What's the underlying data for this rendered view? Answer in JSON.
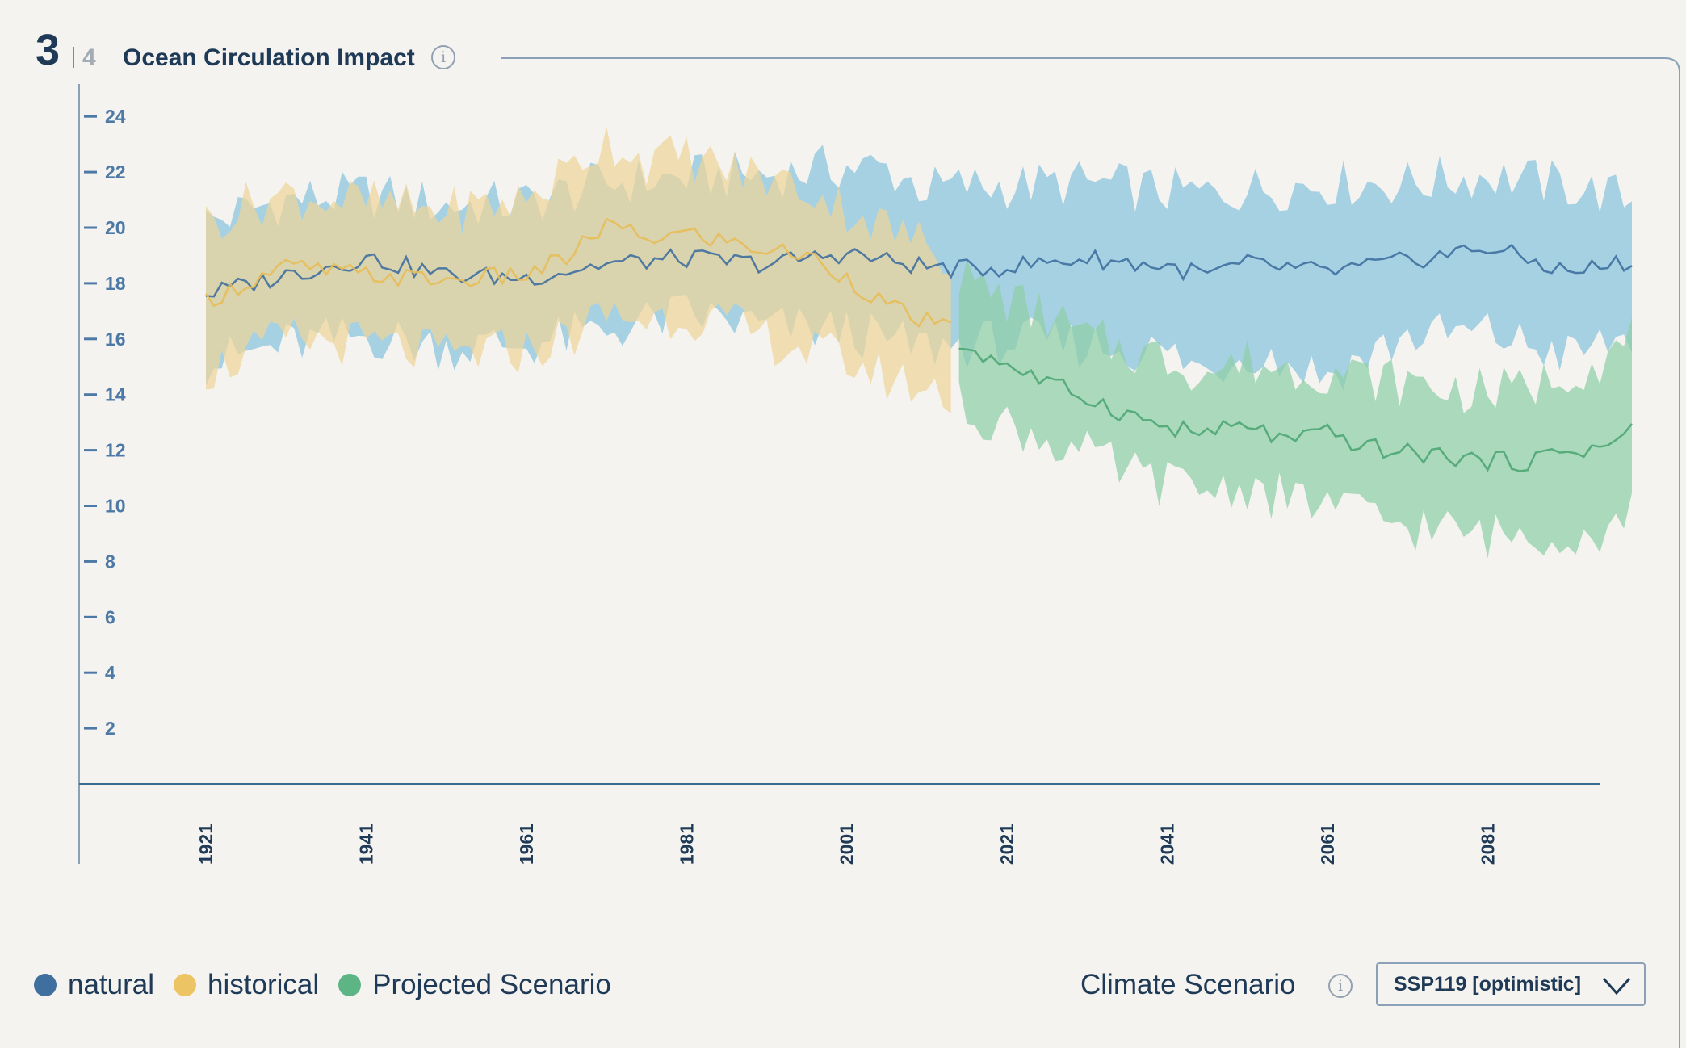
{
  "header": {
    "step_current": "3",
    "step_total": "4",
    "title": "Ocean Circulation Impact",
    "info_icon": "info-icon"
  },
  "legend": [
    {
      "label": "natural",
      "color": "#3f6f9f"
    },
    {
      "label": "historical",
      "color": "#ecc463"
    },
    {
      "label": "Projected Scenario",
      "color": "#5db585"
    }
  ],
  "controls": {
    "scenario_label": "Climate Scenario",
    "scenario_info_icon": "info-icon",
    "scenario_value": "SSP119 [optimistic]",
    "dropdown_icon": "chevron-down-icon"
  },
  "chart_data": {
    "type": "area",
    "title": "",
    "xlabel": "",
    "ylabel": "",
    "xlim": [
      1905,
      2113
    ],
    "ylim": [
      0,
      25
    ],
    "yticks": [
      2,
      4,
      6,
      8,
      10,
      12,
      14,
      16,
      18,
      20,
      22,
      24
    ],
    "xticks": [
      1921,
      1941,
      1961,
      1981,
      2001,
      2021,
      2041,
      2061,
      2081
    ],
    "grid": false,
    "legend_position": "bottom-left",
    "series": [
      {
        "name": "natural",
        "color": "#3f6f9f",
        "band_color": "#8fc6df",
        "x": [
          1921,
          1931,
          1941,
          1951,
          1961,
          1971,
          1981,
          1991,
          2001,
          2006,
          2011,
          2016,
          2021,
          2031,
          2041,
          2046,
          2051,
          2061,
          2071,
          2081,
          2091,
          2099
        ],
        "mean": [
          17.6,
          18.3,
          18.9,
          18.3,
          18.2,
          18.7,
          18.9,
          18.7,
          19.1,
          18.8,
          18.6,
          18.5,
          18.6,
          18.9,
          18.6,
          18.3,
          18.7,
          18.4,
          18.8,
          19.3,
          18.4,
          18.8
        ],
        "upper": [
          20.2,
          21.0,
          21.2,
          20.8,
          20.9,
          21.6,
          21.8,
          21.9,
          22.2,
          22.1,
          21.4,
          21.5,
          21.5,
          21.6,
          21.3,
          21.2,
          21.4,
          21.6,
          21.6,
          21.9,
          21.5,
          21.0
        ],
        "lower": [
          15.1,
          15.8,
          16.1,
          15.7,
          15.8,
          16.3,
          16.9,
          16.4,
          16.3,
          15.9,
          15.7,
          15.8,
          15.9,
          15.8,
          15.5,
          14.8,
          15.6,
          14.7,
          16.1,
          16.2,
          15.4,
          16.1
        ]
      },
      {
        "name": "historical",
        "color": "#e6bd58",
        "band_color": "#efd59a",
        "x": [
          1921,
          1926,
          1931,
          1941,
          1951,
          1961,
          1966,
          1971,
          1976,
          1981,
          1986,
          1991,
          1996,
          2001,
          2006,
          2011,
          2014
        ],
        "mean": [
          17.4,
          18.0,
          18.6,
          18.3,
          18.1,
          18.3,
          18.9,
          20.1,
          19.6,
          19.8,
          19.5,
          19.2,
          19.0,
          18.2,
          17.2,
          16.6,
          16.3
        ],
        "upper": [
          20.2,
          20.8,
          21.2,
          20.9,
          20.6,
          21.0,
          22.0,
          23.2,
          22.4,
          22.6,
          22.1,
          21.8,
          21.4,
          20.7,
          20.0,
          19.4,
          18.9
        ],
        "lower": [
          14.8,
          15.4,
          16.0,
          15.8,
          15.4,
          15.6,
          16.0,
          16.9,
          16.7,
          16.9,
          16.5,
          16.0,
          15.6,
          15.2,
          14.6,
          14.2,
          14.0
        ]
      },
      {
        "name": "Projected Scenario",
        "color": "#4ea676",
        "band_color": "#8fcfa6",
        "x": [
          2015,
          2021,
          2026,
          2031,
          2036,
          2041,
          2046,
          2051,
          2056,
          2061,
          2066,
          2071,
          2076,
          2081,
          2086,
          2091,
          2096,
          2099
        ],
        "mean": [
          15.8,
          15.1,
          14.4,
          13.9,
          13.3,
          12.8,
          12.6,
          12.9,
          12.3,
          12.6,
          12.1,
          11.9,
          11.8,
          11.6,
          11.6,
          12.0,
          12.1,
          12.9
        ],
        "upper": [
          18.3,
          17.4,
          16.8,
          16.0,
          15.6,
          15.3,
          14.8,
          15.2,
          14.9,
          14.9,
          14.6,
          14.4,
          14.2,
          14.1,
          14.2,
          14.9,
          15.3,
          16.0
        ],
        "lower": [
          13.6,
          12.9,
          12.4,
          11.8,
          11.2,
          10.8,
          10.6,
          10.7,
          10.2,
          10.1,
          9.6,
          9.3,
          9.1,
          8.9,
          9.0,
          9.1,
          9.0,
          10.2
        ]
      }
    ]
  }
}
